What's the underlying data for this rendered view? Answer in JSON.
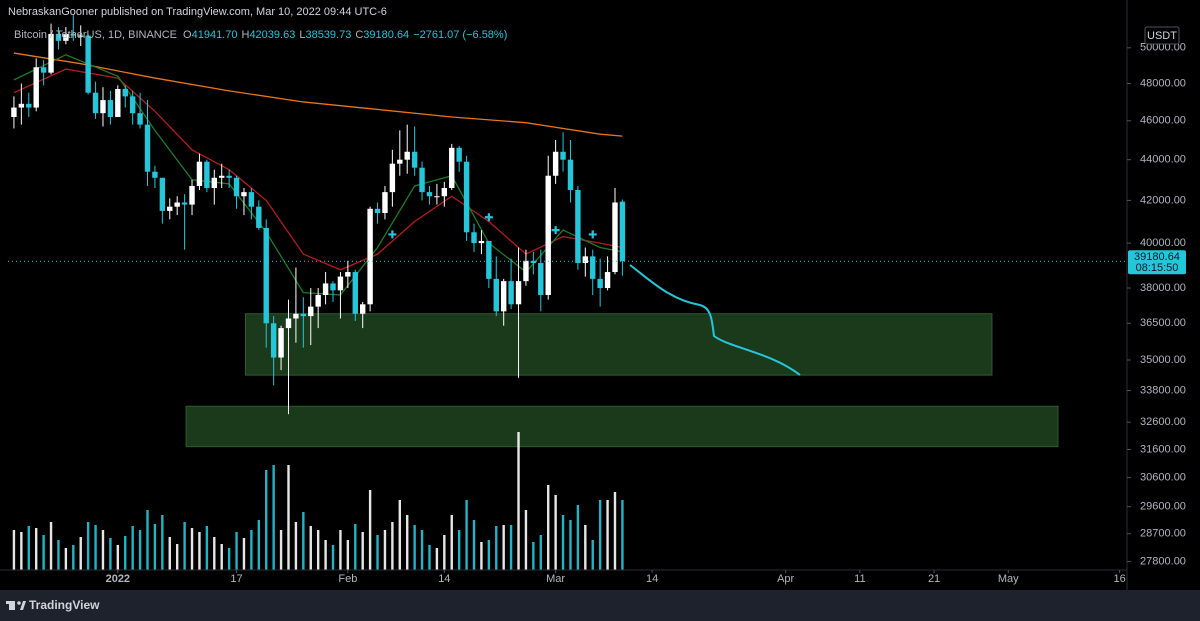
{
  "header": {
    "published": "NebraskanGooner published on TradingView.com, Mar 10, 2022 09:44 UTC-6",
    "symbol": "Bitcoin / TetherUS, 1D, BINANCE",
    "ohlc": [
      {
        "key": "O",
        "value": "41941.70"
      },
      {
        "key": "H",
        "value": "42039.63"
      },
      {
        "key": "L",
        "value": "38539.73"
      },
      {
        "key": "C",
        "value": "39180.64"
      }
    ],
    "change": "−2761.07 (−6.58%)",
    "brand": "TradingView"
  },
  "chart_data": {
    "type": "candlestick",
    "currency": "USDT",
    "log_scale": true,
    "grid": false,
    "up_color": "#ffffff",
    "down_color": "#26c6da",
    "xlim": [
      -14.8,
      136
    ],
    "ylim": [
      27535,
      51613
    ],
    "xticks": [
      {
        "value": 0,
        "label": "2022"
      },
      {
        "value": 16,
        "label": "17"
      },
      {
        "value": 31,
        "label": "Feb"
      },
      {
        "value": 44,
        "label": "14"
      },
      {
        "value": 59,
        "label": "Mar"
      },
      {
        "value": 72,
        "label": "14"
      },
      {
        "value": 90,
        "label": "Apr"
      },
      {
        "value": 100,
        "label": "11"
      },
      {
        "value": 110,
        "label": "21"
      },
      {
        "value": 120,
        "label": "May"
      },
      {
        "value": 135,
        "label": "16"
      }
    ],
    "yticks": [
      {
        "value": 50000,
        "label": "50000.00"
      },
      {
        "value": 48000,
        "label": "48000.00"
      },
      {
        "value": 46000,
        "label": "46000.00"
      },
      {
        "value": 44000,
        "label": "44000.00"
      },
      {
        "value": 42000,
        "label": "42000.00"
      },
      {
        "value": 40000,
        "label": "40000.00"
      },
      {
        "value": 38000,
        "label": "38000.00"
      },
      {
        "value": 36500,
        "label": "36500.00"
      },
      {
        "value": 35000,
        "label": "35000.00"
      },
      {
        "value": 33800,
        "label": "33800.00"
      },
      {
        "value": 32600,
        "label": "32600.00"
      },
      {
        "value": 31600,
        "label": "31600.00"
      },
      {
        "value": 30600,
        "label": "30600.00"
      },
      {
        "value": 29600,
        "label": "29600.00"
      },
      {
        "value": 28700,
        "label": "28700.00"
      },
      {
        "value": 27800,
        "label": "27800.00"
      }
    ],
    "x": [
      -14,
      -13,
      -12,
      -11,
      -10,
      -9,
      -8,
      -7,
      -6,
      -5,
      -4,
      -3,
      -2,
      -1,
      0,
      1,
      2,
      3,
      4,
      5,
      6,
      7,
      8,
      9,
      10,
      11,
      12,
      13,
      14,
      15,
      16,
      17,
      18,
      19,
      20,
      21,
      22,
      23,
      24,
      25,
      26,
      27,
      28,
      29,
      30,
      31,
      32,
      33,
      34,
      35,
      36,
      37,
      38,
      39,
      40,
      41,
      42,
      43,
      44,
      45,
      46,
      47,
      48,
      49,
      50,
      51,
      52,
      53,
      54,
      55,
      56,
      57,
      58,
      59,
      60,
      61,
      62,
      63,
      64,
      65,
      66,
      67,
      68
    ],
    "open": [
      46200,
      46700,
      46900,
      46700,
      48900,
      48600,
      50800,
      50400,
      50800,
      50700,
      50700,
      47500,
      46400,
      47100,
      46200,
      47700,
      47300,
      46400,
      45800,
      43400,
      43100,
      41500,
      41700,
      41900,
      41800,
      42700,
      43900,
      42600,
      43100,
      43200,
      43100,
      42200,
      42400,
      41700,
      40700,
      36500,
      35100,
      36300,
      36700,
      36900,
      36800,
      37200,
      37700,
      38200,
      37900,
      38500,
      38700,
      36900,
      37300,
      41600,
      41400,
      42400,
      43800,
      44000,
      44400,
      43600,
      42400,
      42200,
      42200,
      42600,
      44600,
      43900,
      40500,
      40000,
      40100,
      38400,
      37000,
      38300,
      37300,
      38300,
      39200,
      39100,
      37700,
      43200,
      44400,
      44000,
      42500,
      39100,
      39400,
      38400,
      38000,
      38700,
      41941.7
    ],
    "high": [
      47300,
      48000,
      47500,
      49400,
      49300,
      51400,
      51200,
      51200,
      51900,
      51300,
      50800,
      48100,
      47800,
      47600,
      47900,
      47900,
      47600,
      47500,
      47100,
      43700,
      43100,
      42100,
      42200,
      42300,
      43000,
      44300,
      44000,
      43500,
      43800,
      43500,
      43200,
      42600,
      42600,
      42000,
      41100,
      36800,
      36400,
      37500,
      38900,
      37600,
      38000,
      38000,
      38700,
      38300,
      38700,
      39200,
      38800,
      37400,
      41700,
      41900,
      42700,
      44500,
      45500,
      45800,
      45700,
      43900,
      42700,
      42800,
      42900,
      44800,
      44700,
      44200,
      40900,
      40600,
      40100,
      39400,
      38400,
      39300,
      39800,
      39700,
      39600,
      39700,
      44200,
      45000,
      45400,
      45000,
      42700,
      39800,
      39700,
      39300,
      39400,
      42600,
      42039.63
    ],
    "low": [
      45600,
      45800,
      46200,
      46500,
      47900,
      48500,
      49900,
      50200,
      50400,
      50100,
      47400,
      46100,
      45700,
      45800,
      46200,
      46700,
      45800,
      45600,
      42700,
      42600,
      40900,
      41100,
      41300,
      39700,
      41300,
      42500,
      42400,
      41800,
      42600,
      42600,
      41600,
      41300,
      41100,
      40600,
      35500,
      34000,
      34600,
      32900,
      35700,
      35500,
      35600,
      36300,
      37300,
      37400,
      36700,
      38000,
      36600,
      36300,
      37000,
      40900,
      41100,
      41700,
      43200,
      43300,
      43200,
      42000,
      41800,
      41800,
      41700,
      42500,
      43400,
      40100,
      39600,
      39500,
      38000,
      36800,
      36400,
      37100,
      34300,
      38100,
      38600,
      37000,
      37500,
      42800,
      43400,
      41900,
      38800,
      38500,
      37700,
      37200,
      37900,
      38600,
      38539.73
    ],
    "close": [
      46700,
      46900,
      46700,
      48900,
      48600,
      50800,
      50400,
      50800,
      50700,
      50700,
      47500,
      46400,
      47100,
      46200,
      47700,
      47300,
      46400,
      45800,
      43400,
      43100,
      41500,
      41700,
      41900,
      41800,
      42700,
      43900,
      42600,
      43100,
      43200,
      43100,
      42200,
      42400,
      41700,
      40700,
      36500,
      35100,
      36300,
      36700,
      36900,
      36800,
      37200,
      37700,
      38200,
      37900,
      38500,
      38700,
      36900,
      37300,
      41600,
      41400,
      42400,
      43800,
      44000,
      44400,
      43600,
      42400,
      42200,
      42200,
      42600,
      44600,
      43900,
      40500,
      40000,
      40100,
      38400,
      37000,
      38300,
      37300,
      38300,
      39200,
      39100,
      37700,
      43200,
      44400,
      44000,
      42500,
      39100,
      39400,
      38400,
      38000,
      38700,
      41900,
      39180.64
    ],
    "volume": [
      40000,
      38000,
      44000,
      42000,
      35000,
      48000,
      30000,
      22000,
      25000,
      33000,
      48000,
      45000,
      40000,
      32000,
      25000,
      34000,
      44000,
      40000,
      60000,
      46000,
      55000,
      33000,
      26000,
      48000,
      42000,
      38000,
      44000,
      33000,
      26000,
      22000,
      38000,
      32000,
      40000,
      50000,
      100000,
      105000,
      40000,
      105000,
      48000,
      58000,
      44000,
      40000,
      30000,
      25000,
      40000,
      30000,
      46000,
      38000,
      80000,
      35000,
      40000,
      48000,
      70000,
      55000,
      45000,
      40000,
      25000,
      22000,
      35000,
      55000,
      40000,
      70000,
      50000,
      28000,
      30000,
      44000,
      45000,
      45000,
      138000,
      60000,
      28000,
      35000,
      85000,
      75000,
      55000,
      50000,
      65000,
      45000,
      30000,
      70000,
      70000,
      78000,
      70000
    ],
    "lines": [
      {
        "color": "#e8751a",
        "x": [
          -14,
          -5,
          5,
          15,
          25,
          35,
          45,
          55,
          65,
          68
        ],
        "values": [
          49700,
          49100,
          48300,
          47600,
          47000,
          46600,
          46200,
          45900,
          45300,
          45200
        ]
      },
      {
        "color": "#b71c1c",
        "x": [
          -14,
          -7,
          0,
          5,
          10,
          15,
          20,
          25,
          30,
          35,
          40,
          45,
          50,
          55,
          60,
          65,
          68
        ],
        "values": [
          47500,
          48800,
          48300,
          46500,
          44500,
          43500,
          42000,
          39500,
          38800,
          39500,
          41000,
          42200,
          41000,
          39500,
          40300,
          40000,
          39800
        ]
      },
      {
        "color": "#1f7a2a",
        "x": [
          -14,
          -7,
          0,
          5,
          10,
          15,
          20,
          25,
          30,
          35,
          40,
          45,
          50,
          55,
          60,
          65,
          68
        ],
        "values": [
          48200,
          49600,
          48400,
          45500,
          43000,
          42800,
          40500,
          37800,
          37700,
          39800,
          42700,
          43200,
          40000,
          38700,
          40600,
          39800,
          39600
        ]
      }
    ],
    "markers": {
      "color": "#26c6da",
      "x": [
        37,
        50,
        59,
        64
      ],
      "values": [
        40400,
        41200,
        40600,
        40400
      ]
    },
    "zones": [
      {
        "x": [
          17.2,
          117.8
        ],
        "y": [
          34400,
          36900
        ]
      },
      {
        "x": [
          9.2,
          126.7
        ],
        "y": [
          31700,
          33200
        ]
      }
    ],
    "zone_color": "#1b3a1b",
    "last_price": 39180.64,
    "countdown": "08:15:50"
  }
}
